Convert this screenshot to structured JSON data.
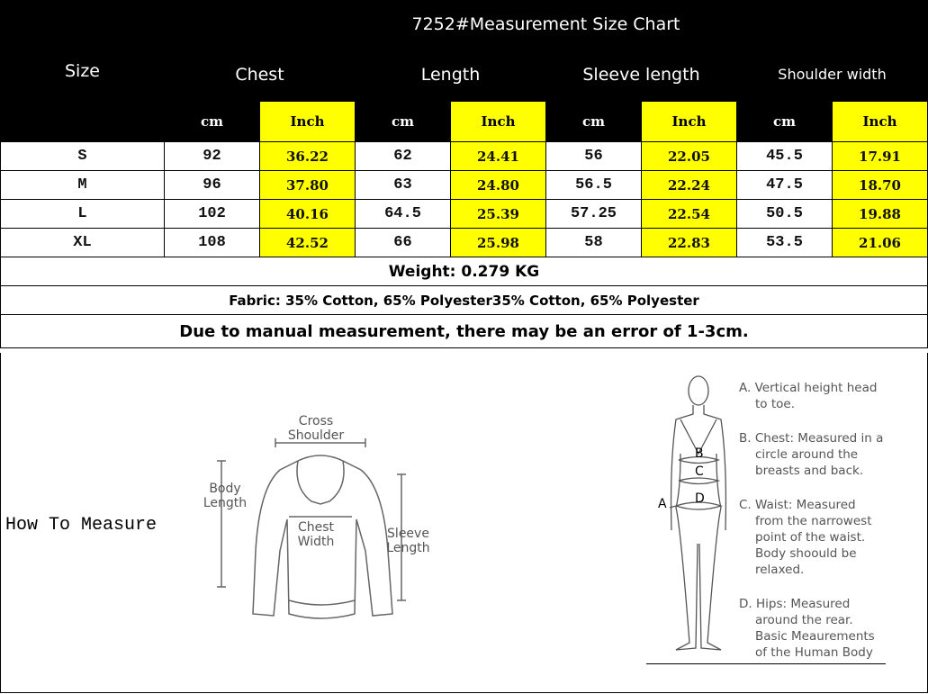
{
  "title": "7252#Measurement Size Chart",
  "size_header": "Size",
  "groups": [
    "Chest",
    "Length",
    "Sleeve length",
    "Shoulder width"
  ],
  "units": {
    "cm": "cm",
    "inch": "Inch"
  },
  "rows": [
    {
      "size": "S",
      "values": [
        "92",
        "36.22",
        "62",
        "24.41",
        "56",
        "22.05",
        "45.5",
        "17.91"
      ]
    },
    {
      "size": "M",
      "values": [
        "96",
        "37.80",
        "63",
        "24.80",
        "56.5",
        "22.24",
        "47.5",
        "18.70"
      ]
    },
    {
      "size": "L",
      "values": [
        "102",
        "40.16",
        "64.5",
        "25.39",
        "57.25",
        "22.54",
        "50.5",
        "19.88"
      ]
    },
    {
      "size": "XL",
      "values": [
        "108",
        "42.52",
        "66",
        "25.98",
        "58",
        "22.83",
        "53.5",
        "21.06"
      ]
    }
  ],
  "weight": "Weight: 0.279 KG",
  "fabric": "Fabric: 35% Cotton, 65% Polyester35% Cotton, 65% Polyester",
  "note": "Due to manual measurement, there may be an error of 1-3cm.",
  "how_to": "How To Measure",
  "sweater_labels": {
    "cross": "Cross Shoulder",
    "body": "Body Length",
    "chest": "Chest Width",
    "sleeve": "Sleeve Length"
  },
  "body_letters": [
    "A",
    "B",
    "C",
    "D"
  ],
  "body_desc": [
    [
      "A. Vertical height head",
      "to toe."
    ],
    [
      "B. Chest: Measured in a",
      "circle around the",
      "breasts and back."
    ],
    [
      "C. Waist: Measured",
      "from the narrowest",
      "point of the waist.",
      "Body shoould be",
      "relaxed."
    ],
    [
      "D. Hips: Measured",
      "around the rear.",
      "Basic Meaurements",
      "of the Human Body"
    ]
  ],
  "colors": {
    "header_bg": "#000000",
    "inch_bg": "#ffff00"
  }
}
